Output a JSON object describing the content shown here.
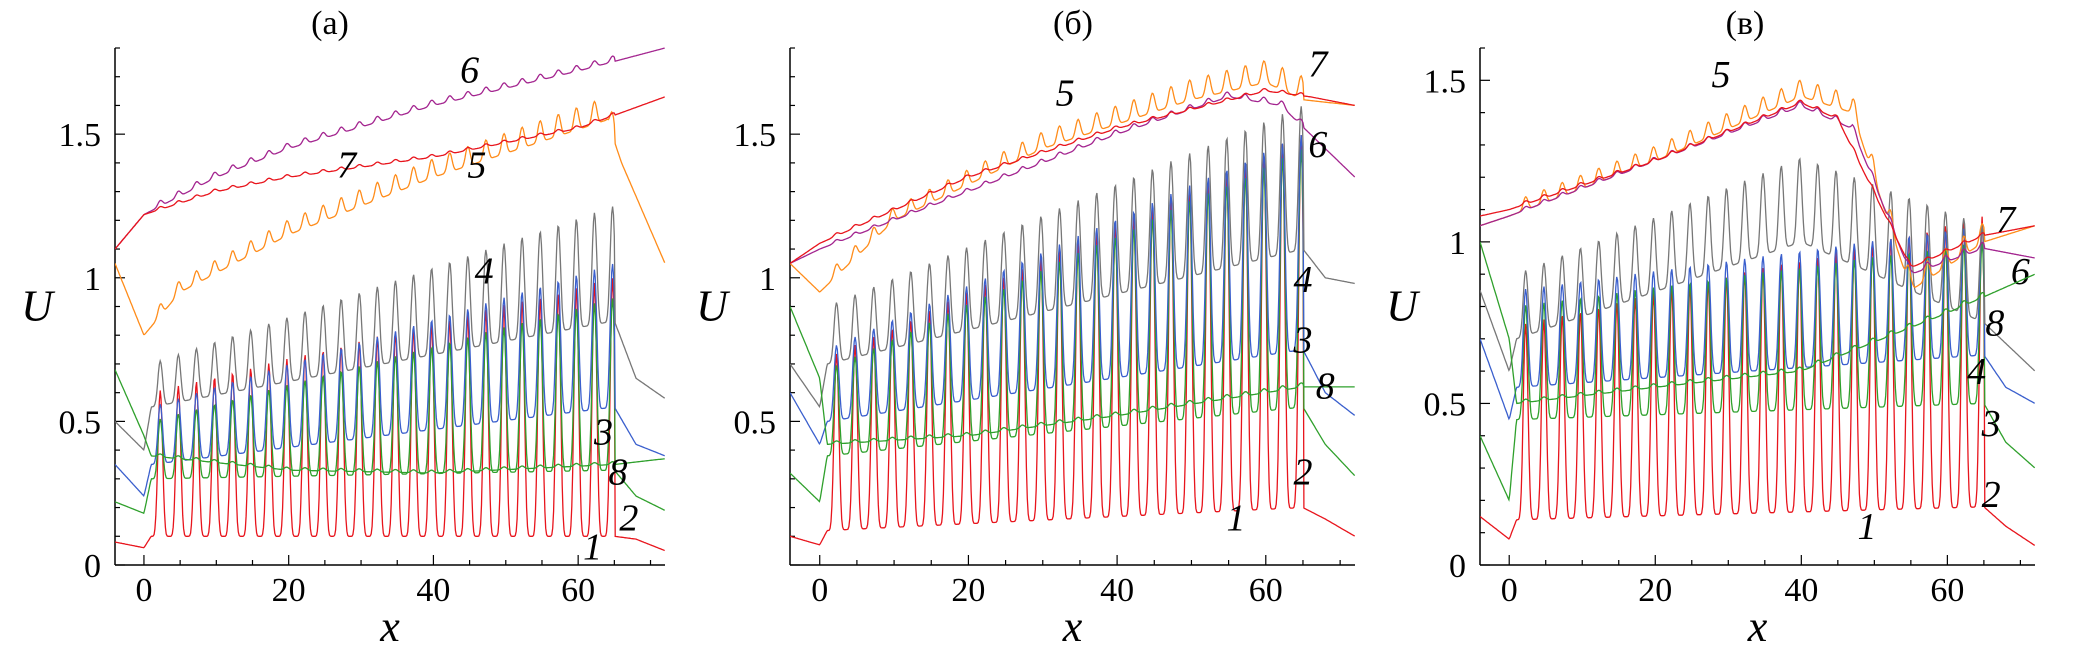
{
  "chart_data": [
    {
      "type": "line",
      "panel": "(а)",
      "xlabel": "x",
      "ylabel": "U",
      "xlim": [
        -4,
        72
      ],
      "ylim": [
        0,
        1.8
      ],
      "xticks": [
        0,
        20,
        40,
        60
      ],
      "yticks": [
        0,
        0.5,
        1,
        1.5
      ],
      "x_tick_labels": [
        "0",
        "20",
        "40",
        "60"
      ],
      "y_tick_labels": [
        "0",
        "0.5",
        "1",
        "1.5"
      ],
      "grid": false,
      "legend": "none",
      "series": [
        {
          "name": "1",
          "color": "#e8141c",
          "x": [
            -4,
            0,
            1,
            65,
            68,
            72
          ],
          "y": [
            0.08,
            0.06,
            0.1,
            0.1,
            0.09,
            0.05
          ],
          "osc_amp_start": 0.5,
          "osc_amp_end": 0.9
        },
        {
          "name": "2",
          "color": "#2fa02c",
          "x": [
            -4,
            0,
            1,
            65,
            68,
            72
          ],
          "y": [
            0.22,
            0.18,
            0.3,
            0.33,
            0.24,
            0.19
          ],
          "osc_amp_start": 0.2,
          "osc_amp_end": 0.6
        },
        {
          "name": "3",
          "color": "#3a5fcd",
          "x": [
            -4,
            0,
            1,
            65,
            68,
            72
          ],
          "y": [
            0.35,
            0.24,
            0.35,
            0.55,
            0.42,
            0.38
          ],
          "osc_amp_start": 0.2,
          "osc_amp_end": 0.5
        },
        {
          "name": "4",
          "color": "#777777",
          "x": [
            -4,
            0,
            1,
            65,
            68,
            72
          ],
          "y": [
            0.5,
            0.4,
            0.55,
            0.85,
            0.65,
            0.58
          ],
          "osc_amp_start": 0.15,
          "osc_amp_end": 0.4
        },
        {
          "name": "5",
          "color": "#ff8c1a",
          "x": [
            -4,
            0,
            5,
            20,
            40,
            64,
            66,
            72
          ],
          "y": [
            1.05,
            0.8,
            0.95,
            1.15,
            1.35,
            1.55,
            1.4,
            1.05
          ],
          "osc_amp_start": 0.04,
          "osc_amp_end": 0.08
        },
        {
          "name": "6",
          "color": "#a3248f",
          "x": [
            -4,
            0,
            10,
            20,
            40,
            60,
            72
          ],
          "y": [
            1.1,
            1.22,
            1.35,
            1.45,
            1.6,
            1.72,
            1.8
          ],
          "osc_amp_start": 0.02,
          "osc_amp_end": 0.02
        },
        {
          "name": "7",
          "color": "#e8141c",
          "x": [
            -4,
            0,
            10,
            20,
            40,
            60,
            72
          ],
          "y": [
            1.1,
            1.22,
            1.3,
            1.35,
            1.42,
            1.52,
            1.63
          ],
          "osc_amp_start": 0.01,
          "osc_amp_end": 0.01
        },
        {
          "name": "8",
          "color": "#2fa02c",
          "x": [
            -4,
            0,
            1,
            20,
            40,
            65,
            72
          ],
          "y": [
            0.68,
            0.45,
            0.38,
            0.33,
            0.32,
            0.35,
            0.37
          ],
          "osc_amp_start": 0.01,
          "osc_amp_end": 0.01
        }
      ]
    },
    {
      "type": "line",
      "panel": "(б)",
      "xlabel": "x",
      "ylabel": "U",
      "xlim": [
        -4,
        72
      ],
      "ylim": [
        0,
        1.8
      ],
      "xticks": [
        0,
        20,
        40,
        60
      ],
      "yticks": [
        0.5,
        1,
        1.5
      ],
      "x_tick_labels": [
        "0",
        "20",
        "40",
        "60"
      ],
      "y_tick_labels": [
        "0.5",
        "1",
        "1.5"
      ],
      "grid": false,
      "legend": "none",
      "series": [
        {
          "name": "1",
          "color": "#e8141c",
          "x": [
            -4,
            0,
            1,
            65,
            68,
            72
          ],
          "y": [
            0.1,
            0.07,
            0.12,
            0.2,
            0.16,
            0.1
          ],
          "osc_amp_start": 0.6,
          "osc_amp_end": 1.3
        },
        {
          "name": "2",
          "color": "#2fa02c",
          "x": [
            -4,
            0,
            1,
            65,
            68,
            72
          ],
          "y": [
            0.32,
            0.22,
            0.38,
            0.55,
            0.42,
            0.31
          ],
          "osc_amp_start": 0.3,
          "osc_amp_end": 0.9
        },
        {
          "name": "3",
          "color": "#3a5fcd",
          "x": [
            -4,
            0,
            1,
            65,
            68,
            72
          ],
          "y": [
            0.6,
            0.42,
            0.5,
            0.75,
            0.6,
            0.52
          ],
          "osc_amp_start": 0.25,
          "osc_amp_end": 0.75
        },
        {
          "name": "4",
          "color": "#777777",
          "x": [
            -4,
            0,
            1,
            65,
            68,
            72
          ],
          "y": [
            0.7,
            0.55,
            0.7,
            1.1,
            1.0,
            0.98
          ],
          "osc_amp_start": 0.2,
          "osc_amp_end": 0.5
        },
        {
          "name": "5",
          "color": "#ff8c1a",
          "x": [
            -4,
            0,
            10,
            30,
            50,
            60,
            65,
            72
          ],
          "y": [
            1.05,
            0.95,
            1.2,
            1.45,
            1.62,
            1.68,
            1.62,
            1.6
          ],
          "osc_amp_start": 0.04,
          "osc_amp_end": 0.08
        },
        {
          "name": "6",
          "color": "#a3248f",
          "x": [
            -4,
            0,
            20,
            40,
            55,
            62,
            66,
            72
          ],
          "y": [
            1.05,
            1.1,
            1.3,
            1.5,
            1.63,
            1.6,
            1.5,
            1.35
          ],
          "osc_amp_start": 0.01,
          "osc_amp_end": 0.02
        },
        {
          "name": "7",
          "color": "#e8141c",
          "x": [
            -4,
            0,
            20,
            40,
            60,
            66,
            72
          ],
          "y": [
            1.05,
            1.12,
            1.35,
            1.52,
            1.65,
            1.63,
            1.6
          ],
          "osc_amp_start": 0.01,
          "osc_amp_end": 0.01
        },
        {
          "name": "8",
          "color": "#2fa02c",
          "x": [
            -4,
            0,
            1,
            20,
            40,
            60,
            65,
            72
          ],
          "y": [
            0.9,
            0.65,
            0.42,
            0.45,
            0.52,
            0.6,
            0.62,
            0.62
          ],
          "osc_amp_start": 0.01,
          "osc_amp_end": 0.015
        }
      ]
    },
    {
      "type": "line",
      "panel": "(в)",
      "xlabel": "x",
      "ylabel": "U",
      "xlim": [
        -4,
        72
      ],
      "ylim": [
        0,
        1.6
      ],
      "xticks": [
        0,
        20,
        40,
        60
      ],
      "yticks": [
        0,
        0.5,
        1,
        1.5
      ],
      "x_tick_labels": [
        "0",
        "20",
        "40",
        "60"
      ],
      "y_tick_labels": [
        "0",
        "0.5",
        "1",
        "1.5"
      ],
      "grid": false,
      "legend": "none",
      "series": [
        {
          "name": "1",
          "color": "#e8141c",
          "x": [
            -4,
            0,
            1,
            65,
            68,
            72
          ],
          "y": [
            0.15,
            0.08,
            0.14,
            0.18,
            0.12,
            0.06
          ],
          "osc_amp_start": 0.6,
          "osc_amp_end": 0.9
        },
        {
          "name": "2",
          "color": "#2fa02c",
          "x": [
            -4,
            0,
            1,
            65,
            68,
            72
          ],
          "y": [
            0.4,
            0.2,
            0.45,
            0.5,
            0.38,
            0.3
          ],
          "osc_amp_start": 0.35,
          "osc_amp_end": 0.5
        },
        {
          "name": "3",
          "color": "#3a5fcd",
          "x": [
            -4,
            0,
            1,
            65,
            68,
            72
          ],
          "y": [
            0.7,
            0.45,
            0.55,
            0.65,
            0.55,
            0.5
          ],
          "osc_amp_start": 0.3,
          "osc_amp_end": 0.4
        },
        {
          "name": "4",
          "color": "#777777",
          "x": [
            -4,
            0,
            1,
            40,
            65,
            72
          ],
          "y": [
            0.85,
            0.6,
            0.7,
            1.0,
            0.75,
            0.6
          ],
          "osc_amp_start": 0.2,
          "osc_amp_end": 0.3
        },
        {
          "name": "5",
          "color": "#ff8c1a",
          "x": [
            -4,
            0,
            20,
            40,
            47,
            55,
            65,
            72
          ],
          "y": [
            1.05,
            1.08,
            1.25,
            1.45,
            1.4,
            0.85,
            1.0,
            1.05
          ],
          "osc_amp_start": 0.04,
          "osc_amp_end": 0.06
        },
        {
          "name": "6",
          "color": "#a3248f",
          "x": [
            -4,
            0,
            20,
            40,
            47,
            55,
            65,
            72
          ],
          "y": [
            1.05,
            1.08,
            1.25,
            1.42,
            1.35,
            0.9,
            0.98,
            0.95
          ],
          "osc_amp_start": 0.01,
          "osc_amp_end": 0.02
        },
        {
          "name": "7",
          "color": "#e8141c",
          "x": [
            -4,
            0,
            20,
            40,
            45,
            55,
            65,
            72
          ],
          "y": [
            1.08,
            1.1,
            1.25,
            1.43,
            1.38,
            0.92,
            1.02,
            1.05
          ],
          "osc_amp_start": 0.01,
          "osc_amp_end": 0.01
        },
        {
          "name": "8",
          "color": "#2fa02c",
          "x": [
            -4,
            0,
            1,
            20,
            40,
            60,
            72
          ],
          "y": [
            1.0,
            0.7,
            0.5,
            0.55,
            0.6,
            0.78,
            0.9
          ],
          "osc_amp_start": 0.01,
          "osc_amp_end": 0.015
        }
      ]
    }
  ]
}
